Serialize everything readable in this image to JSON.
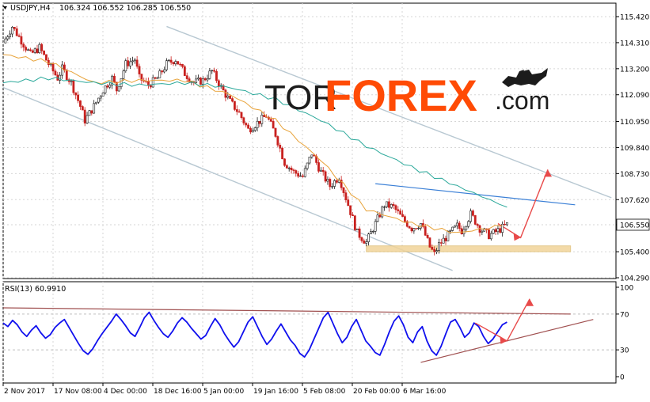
{
  "chart_data": [
    {
      "type": "candlestick",
      "title": "USDJPY,H4",
      "ohlc_label": "106.324 106.552 106.285 106.550",
      "price_ticks": [
        "115.420",
        "114.310",
        "113.200",
        "112.090",
        "110.950",
        "109.840",
        "108.730",
        "107.620",
        "106.550",
        "105.400",
        "104.290"
      ],
      "ylim": [
        104.29,
        115.42
      ],
      "current_price": "106.550",
      "time_ticks": [
        "2 Nov 2017",
        "17 Nov 08:00",
        "4 Dec 00:00",
        "18 Dec 16:00",
        "5 Jan 00:00",
        "19 Jan 16:00",
        "5 Feb 08:00",
        "20 Feb 00:00",
        "6 Mar 16:00"
      ],
      "price_path": [
        [
          0,
          114.3
        ],
        [
          2,
          115.0
        ],
        [
          4,
          114.4
        ],
        [
          6,
          113.8
        ],
        [
          8,
          114.1
        ],
        [
          10,
          113.4
        ],
        [
          12,
          112.8
        ],
        [
          13,
          113.2
        ],
        [
          15,
          112.6
        ],
        [
          17,
          111.6
        ],
        [
          18,
          111.0
        ],
        [
          20,
          111.6
        ],
        [
          22,
          112.3
        ],
        [
          24,
          112.8
        ],
        [
          25,
          112.3
        ],
        [
          27,
          113.4
        ],
        [
          29,
          113.6
        ],
        [
          30,
          112.8
        ],
        [
          32,
          112.5
        ],
        [
          34,
          112.8
        ],
        [
          36,
          113.4
        ],
        [
          38,
          113.6
        ],
        [
          40,
          113.0
        ],
        [
          42,
          112.6
        ],
        [
          44,
          112.7
        ],
        [
          46,
          113.1
        ],
        [
          48,
          112.4
        ],
        [
          50,
          111.8
        ],
        [
          52,
          111.3
        ],
        [
          54,
          110.6
        ],
        [
          56,
          110.9
        ],
        [
          58,
          111.2
        ],
        [
          60,
          110.4
        ],
        [
          62,
          109.2
        ],
        [
          64,
          108.8
        ],
        [
          66,
          108.6
        ],
        [
          68,
          109.6
        ],
        [
          70,
          108.8
        ],
        [
          72,
          108.2
        ],
        [
          74,
          108.6
        ],
        [
          76,
          107.4
        ],
        [
          78,
          106.2
        ],
        [
          80,
          105.8
        ],
        [
          82,
          106.6
        ],
        [
          84,
          107.4
        ],
        [
          86,
          107.3
        ],
        [
          88,
          106.8
        ],
        [
          90,
          106.4
        ],
        [
          92,
          106.6
        ],
        [
          94,
          105.6
        ],
        [
          95,
          105.3
        ],
        [
          96,
          105.7
        ],
        [
          98,
          106.1
        ],
        [
          100,
          106.5
        ],
        [
          101,
          106.3
        ],
        [
          103,
          107.0
        ],
        [
          105,
          106.4
        ],
        [
          107,
          106.1
        ],
        [
          109,
          106.3
        ],
        [
          111,
          106.55
        ]
      ],
      "moving_averages": [
        {
          "color": "#e8a33a",
          "values": [
            [
              0,
              113.8
            ],
            [
              10,
              113.5
            ],
            [
              20,
              112.6
            ],
            [
              30,
              112.7
            ],
            [
              40,
              112.7
            ],
            [
              50,
              112.1
            ],
            [
              60,
              111.0
            ],
            [
              70,
              109.3
            ],
            [
              80,
              107.2
            ],
            [
              90,
              106.6
            ],
            [
              100,
              106.2
            ],
            [
              110,
              106.5
            ]
          ]
        },
        {
          "color": "#2aa89a",
          "values": [
            [
              0,
              112.6
            ],
            [
              10,
              112.8
            ],
            [
              20,
              112.6
            ],
            [
              30,
              112.5
            ],
            [
              40,
              112.6
            ],
            [
              50,
              112.4
            ],
            [
              60,
              111.9
            ],
            [
              70,
              111.0
            ],
            [
              80,
              109.9
            ],
            [
              90,
              109.0
            ],
            [
              100,
              108.2
            ],
            [
              111,
              107.3
            ]
          ]
        }
      ],
      "annotations": [
        {
          "kind": "channel_upper",
          "color": "#b8c8d2",
          "from": [
            36,
            115.0
          ],
          "to": [
            134,
            107.7
          ]
        },
        {
          "kind": "channel_lower",
          "color": "#b8c8d2",
          "from": [
            0,
            112.4
          ],
          "to": [
            99,
            104.6
          ]
        },
        {
          "kind": "resistance_line",
          "color": "#3a7fd6",
          "from": [
            82,
            108.3
          ],
          "to": [
            126,
            107.4
          ]
        },
        {
          "kind": "support_zone",
          "color": "#f1d49a",
          "from": [
            80,
            105.65
          ],
          "to": [
            125,
            105.4
          ]
        },
        {
          "kind": "forecast_arrow",
          "color": "#e84a4a",
          "points": [
            [
              109,
              106.6
            ],
            [
              114,
              106.0
            ],
            [
              120,
              108.9
            ]
          ]
        }
      ]
    },
    {
      "type": "line",
      "title": "RSI(13) 60.9910",
      "ylim": [
        0,
        100
      ],
      "y_ticks": [
        "100",
        "70",
        "30",
        "0"
      ],
      "levels": [
        70,
        30
      ],
      "values": [
        60,
        56,
        63,
        58,
        50,
        45,
        52,
        57,
        49,
        43,
        47,
        55,
        60,
        64,
        55,
        46,
        37,
        29,
        25,
        31,
        40,
        48,
        55,
        62,
        70,
        64,
        57,
        49,
        45,
        55,
        66,
        72,
        63,
        55,
        48,
        44,
        51,
        60,
        66,
        61,
        54,
        48,
        42,
        46,
        56,
        65,
        58,
        48,
        40,
        33,
        39,
        50,
        61,
        67,
        56,
        45,
        36,
        42,
        51,
        59,
        50,
        41,
        35,
        26,
        22,
        30,
        42,
        54,
        66,
        72,
        60,
        48,
        38,
        44,
        56,
        64,
        52,
        40,
        34,
        27,
        24,
        36,
        50,
        62,
        68,
        58,
        44,
        38,
        50,
        56,
        40,
        29,
        24,
        34,
        48,
        61,
        64,
        55,
        44,
        49,
        60,
        56,
        45,
        37,
        42,
        50,
        58,
        61
      ],
      "annotations": [
        {
          "kind": "resistance_line",
          "color": "#a05050",
          "from": [
            0,
            77
          ],
          "to": [
            125,
            70
          ]
        },
        {
          "kind": "support_line",
          "color": "#a05050",
          "from": [
            92,
            16
          ],
          "to": [
            130,
            64
          ]
        },
        {
          "kind": "forecast_arrow",
          "color": "#e84a4a",
          "points": [
            [
              104,
              60
            ],
            [
              111,
              40
            ],
            [
              116,
              87
            ]
          ]
        }
      ]
    }
  ],
  "watermark": {
    "pre": "TOR",
    "main": "FOREX",
    "post": ".com",
    "main_color": "#ff4b05"
  }
}
